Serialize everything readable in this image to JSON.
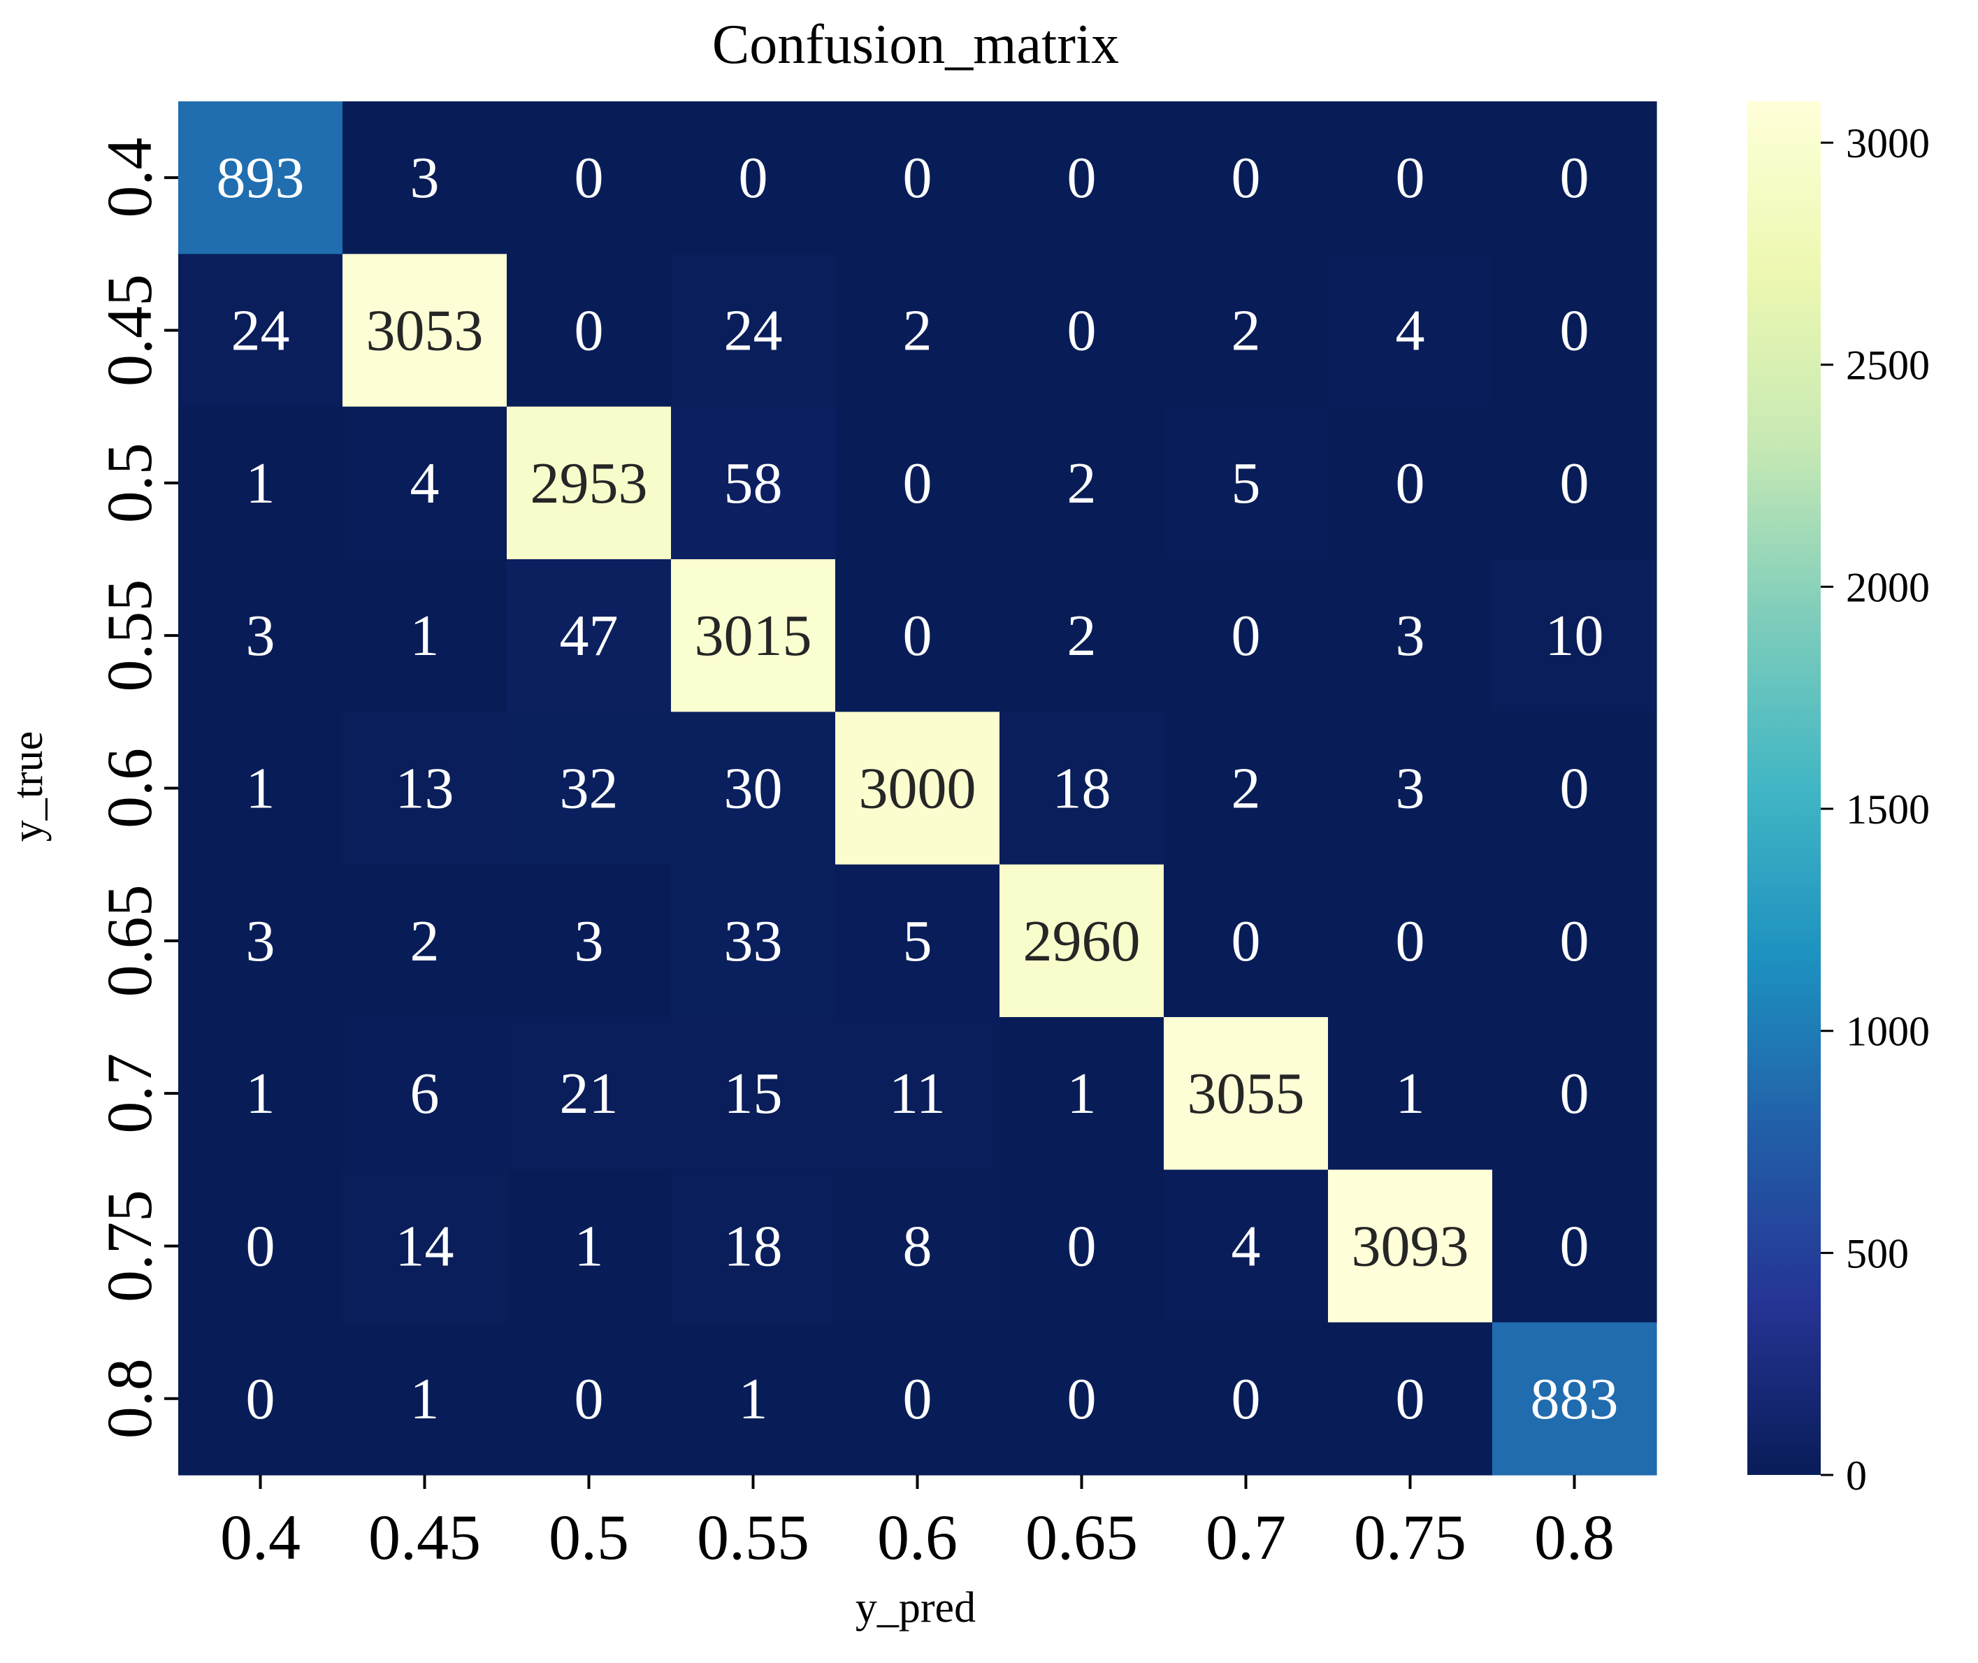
{
  "chart_data": {
    "type": "heatmap",
    "title": "Confusion_matrix",
    "xlabel": "y_pred",
    "ylabel": "y_true",
    "x_categories": [
      "0.4",
      "0.45",
      "0.5",
      "0.55",
      "0.6",
      "0.65",
      "0.7",
      "0.75",
      "0.8"
    ],
    "y_categories": [
      "0.4",
      "0.45",
      "0.5",
      "0.55",
      "0.6",
      "0.65",
      "0.7",
      "0.75",
      "0.8"
    ],
    "matrix": [
      [
        893,
        3,
        0,
        0,
        0,
        0,
        0,
        0,
        0
      ],
      [
        24,
        3053,
        0,
        24,
        2,
        0,
        2,
        4,
        0
      ],
      [
        1,
        4,
        2953,
        58,
        0,
        2,
        5,
        0,
        0
      ],
      [
        3,
        1,
        47,
        3015,
        0,
        2,
        0,
        3,
        10
      ],
      [
        1,
        13,
        32,
        30,
        3000,
        18,
        2,
        3,
        0
      ],
      [
        3,
        2,
        3,
        33,
        5,
        2960,
        0,
        0,
        0
      ],
      [
        1,
        6,
        21,
        15,
        11,
        1,
        3055,
        1,
        0
      ],
      [
        0,
        14,
        1,
        18,
        8,
        0,
        4,
        3093,
        0
      ],
      [
        0,
        1,
        0,
        1,
        0,
        0,
        0,
        0,
        883
      ]
    ],
    "colorbar": {
      "colormap": "YlGnBu",
      "vmin": 0,
      "vmax": 3093,
      "ticks": [
        "0",
        "500",
        "1000",
        "1500",
        "2000",
        "2500",
        "3000"
      ]
    },
    "grid": false,
    "legend": "colorbar-right"
  }
}
